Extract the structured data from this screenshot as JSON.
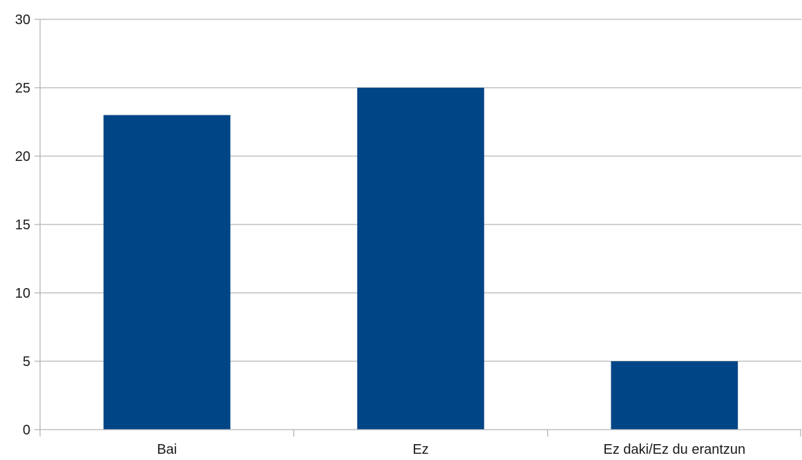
{
  "chart_data": {
    "type": "bar",
    "categories": [
      "Bai",
      "Ez",
      "Ez daki/Ez du erantzun"
    ],
    "values": [
      23,
      25,
      5
    ],
    "ylim": [
      0,
      30
    ],
    "yticks": [
      0,
      5,
      10,
      15,
      20,
      25,
      30
    ],
    "grid": true,
    "legend": "none",
    "bar_color": "#004586",
    "title": "",
    "xlabel": "",
    "ylabel": ""
  }
}
